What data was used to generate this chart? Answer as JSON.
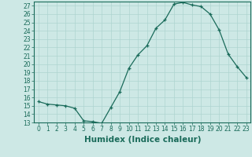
{
  "xlabel": "Humidex (Indice chaleur)",
  "ylabel": "",
  "x": [
    0,
    1,
    2,
    3,
    4,
    5,
    6,
    7,
    8,
    9,
    10,
    11,
    12,
    13,
    14,
    15,
    16,
    17,
    18,
    19,
    20,
    21,
    22,
    23
  ],
  "y": [
    15.5,
    15.2,
    15.1,
    15.0,
    14.7,
    13.2,
    13.1,
    12.9,
    14.8,
    16.7,
    19.5,
    21.1,
    22.2,
    24.3,
    25.3,
    27.2,
    27.4,
    27.1,
    26.9,
    26.0,
    24.1,
    21.2,
    19.7,
    18.4
  ],
  "ylim": [
    13,
    27.5
  ],
  "xlim": [
    -0.5,
    23.5
  ],
  "yticks": [
    13,
    14,
    15,
    16,
    17,
    18,
    19,
    20,
    21,
    22,
    23,
    24,
    25,
    26,
    27
  ],
  "xticks": [
    0,
    1,
    2,
    3,
    4,
    5,
    6,
    7,
    8,
    9,
    10,
    11,
    12,
    13,
    14,
    15,
    16,
    17,
    18,
    19,
    20,
    21,
    22,
    23
  ],
  "line_color": "#1a6b5a",
  "marker": "+",
  "bg_color": "#cde8e5",
  "grid_color": "#aed4d0",
  "axis_color": "#1a6b5a",
  "tick_label_color": "#1a6b5a",
  "xlabel_color": "#1a6b5a",
  "tick_fontsize": 5.5,
  "xlabel_fontsize": 7.5
}
